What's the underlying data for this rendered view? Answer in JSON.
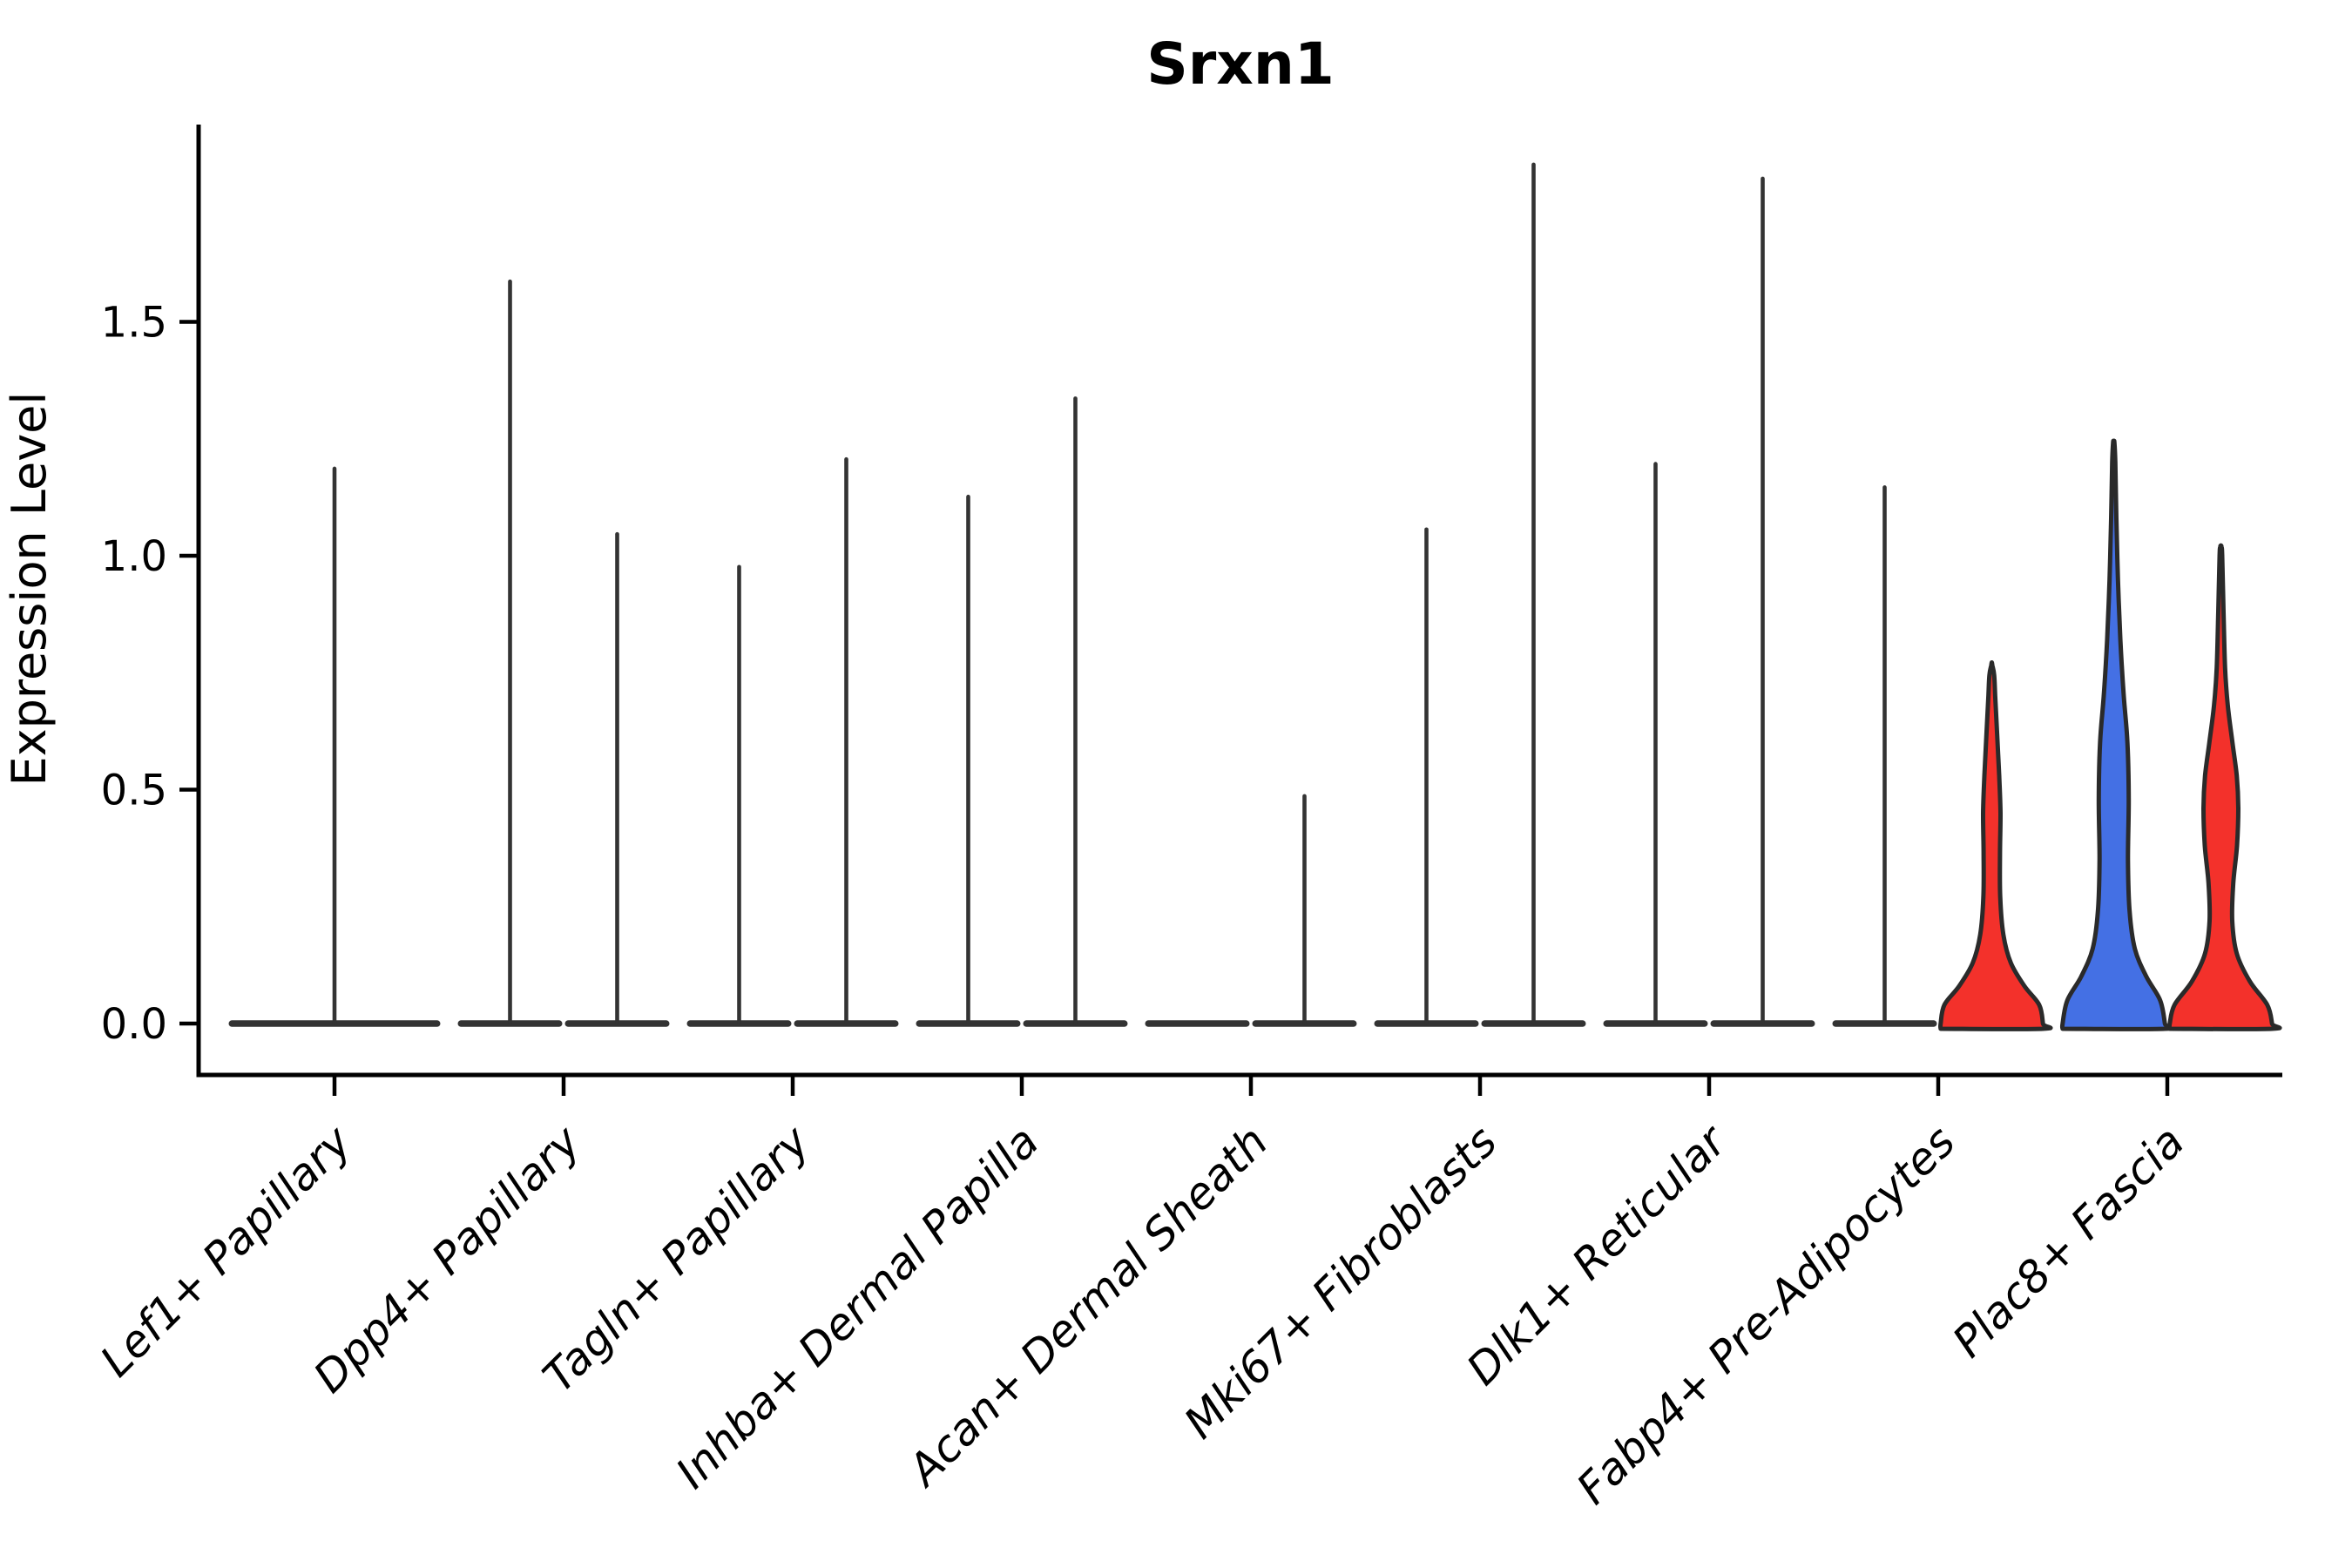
{
  "title": "Srxn1",
  "chart_data": {
    "type": "violin",
    "title": "Srxn1",
    "xlabel": "",
    "ylabel": "Expression Level",
    "ylim": [
      -0.11,
      1.92
    ],
    "yticks": [
      0.0,
      0.5,
      1.0,
      1.5
    ],
    "ytick_labels": [
      "0.0",
      "0.5",
      "1.0",
      "1.5"
    ],
    "grid": false,
    "legend": "none",
    "categories": [
      "Lef1+ Papillary",
      "Dpp4+ Papillary",
      "Tagln+ Papillary",
      "Inhba+ Dermal Papilla",
      "Acan+ Dermal Sheath",
      "Mki67+ Fibroblasts",
      "Dlk1+ Reticular",
      "Fabp4+ Pre-Adipocytes",
      "Plac8+ Fascia"
    ],
    "colors": {
      "spike": "#333333",
      "outline": "#2a2a2a",
      "red_fill": "#f3312b",
      "blue_fill": "#4470e4",
      "axis": "#000000"
    },
    "violins": [
      {
        "category": "Lef1+ Papillary",
        "slot": "full",
        "style": "spike",
        "max_expression": 1.19
      },
      {
        "category": "Dpp4+ Papillary",
        "slot": "left",
        "style": "spike",
        "max_expression": 1.59
      },
      {
        "category": "Dpp4+ Papillary",
        "slot": "right",
        "style": "spike",
        "max_expression": 1.05
      },
      {
        "category": "Tagln+ Papillary",
        "slot": "left",
        "style": "spike",
        "max_expression": 0.98
      },
      {
        "category": "Tagln+ Papillary",
        "slot": "right",
        "style": "spike",
        "max_expression": 1.21
      },
      {
        "category": "Inhba+ Dermal Papilla",
        "slot": "left",
        "style": "spike",
        "max_expression": 1.13
      },
      {
        "category": "Inhba+ Dermal Papilla",
        "slot": "right",
        "style": "spike",
        "max_expression": 1.34
      },
      {
        "category": "Acan+ Dermal Sheath",
        "slot": "left",
        "style": "spike",
        "max_expression": 0
      },
      {
        "category": "Acan+ Dermal Sheath",
        "slot": "right",
        "style": "spike",
        "max_expression": 0.49
      },
      {
        "category": "Mki67+ Fibroblasts",
        "slot": "left",
        "style": "spike",
        "max_expression": 1.06
      },
      {
        "category": "Mki67+ Fibroblasts",
        "slot": "right",
        "style": "spike",
        "max_expression": 1.84
      },
      {
        "category": "Dlk1+ Reticular",
        "slot": "left",
        "style": "spike",
        "max_expression": 1.2
      },
      {
        "category": "Dlk1+ Reticular",
        "slot": "right",
        "style": "spike",
        "max_expression": 1.81
      },
      {
        "category": "Fabp4+ Pre-Adipocytes",
        "slot": "left",
        "style": "spike",
        "max_expression": 1.15
      },
      {
        "category": "Fabp4+ Pre-Adipocytes",
        "slot": "right",
        "style": "filled",
        "fill": "#f3312b",
        "max_expression": 0.77,
        "profile": [
          [
            0,
            0.97
          ],
          [
            0.04,
            0.9
          ],
          [
            0.08,
            0.62
          ],
          [
            0.13,
            0.36
          ],
          [
            0.19,
            0.22
          ],
          [
            0.27,
            0.16
          ],
          [
            0.36,
            0.155
          ],
          [
            0.45,
            0.165
          ],
          [
            0.53,
            0.14
          ],
          [
            0.62,
            0.1
          ],
          [
            0.7,
            0.065
          ],
          [
            0.745,
            0.045
          ],
          [
            0.765,
            0.012
          ]
        ]
      },
      {
        "category": "Plac8+ Fascia",
        "slot": "left",
        "style": "filled",
        "fill": "#4470e4",
        "max_expression": 1.24,
        "profile": [
          [
            0,
            0.97
          ],
          [
            0.05,
            0.88
          ],
          [
            0.1,
            0.62
          ],
          [
            0.16,
            0.4
          ],
          [
            0.24,
            0.3
          ],
          [
            0.35,
            0.27
          ],
          [
            0.48,
            0.285
          ],
          [
            0.6,
            0.26
          ],
          [
            0.7,
            0.19
          ],
          [
            0.82,
            0.125
          ],
          [
            0.95,
            0.08
          ],
          [
            1.08,
            0.05
          ],
          [
            1.2,
            0.03
          ],
          [
            1.243,
            0.012
          ]
        ]
      },
      {
        "category": "Plac8+ Fascia",
        "slot": "right",
        "style": "filled",
        "fill": "#f3312b",
        "max_expression": 1.02,
        "profile": [
          [
            0,
            0.97
          ],
          [
            0.04,
            0.88
          ],
          [
            0.09,
            0.55
          ],
          [
            0.15,
            0.3
          ],
          [
            0.22,
            0.215
          ],
          [
            0.3,
            0.235
          ],
          [
            0.38,
            0.305
          ],
          [
            0.46,
            0.33
          ],
          [
            0.53,
            0.3
          ],
          [
            0.6,
            0.22
          ],
          [
            0.68,
            0.13
          ],
          [
            0.76,
            0.08
          ],
          [
            0.88,
            0.05
          ],
          [
            1.0,
            0.025
          ],
          [
            1.019,
            0.012
          ]
        ]
      }
    ]
  }
}
